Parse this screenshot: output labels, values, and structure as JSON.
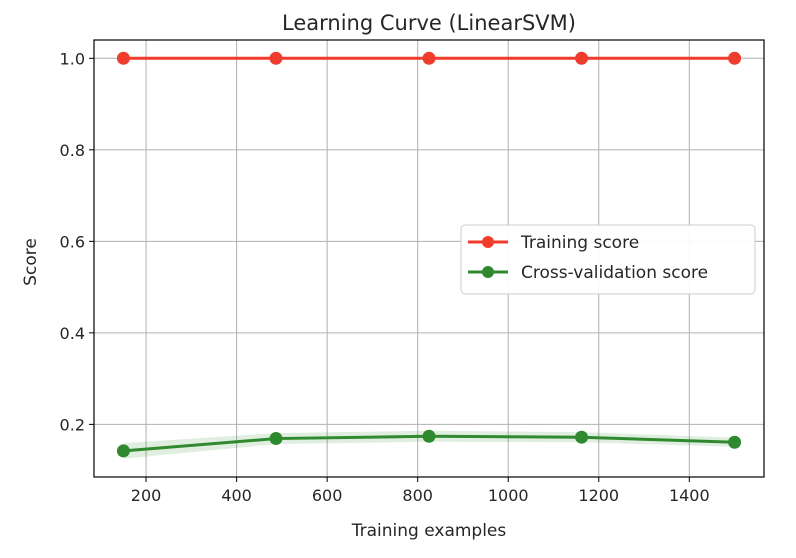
{
  "chart_data": {
    "type": "line",
    "title": "Learning Curve (LinearSVM)",
    "xlabel": "Training examples",
    "ylabel": "Score",
    "xlim": [
      85,
      1565
    ],
    "ylim": [
      0.085,
      1.04
    ],
    "grid": true,
    "legend_position": "center-right",
    "x_ticks": [
      200,
      400,
      600,
      800,
      1000,
      1200,
      1400
    ],
    "y_ticks": [
      0.2,
      0.4,
      0.6,
      0.8,
      1.0
    ],
    "x_tick_labels": [
      "200",
      "400",
      "600",
      "800",
      "1000",
      "1200",
      "1400"
    ],
    "y_tick_labels": [
      "0.2",
      "0.4",
      "0.6",
      "0.8",
      "1.0"
    ],
    "x": [
      150,
      487,
      825,
      1162,
      1500
    ],
    "series": [
      {
        "name": "Training score",
        "color": "#f03c2d",
        "values": [
          1.0,
          1.0,
          1.0,
          1.0,
          1.0
        ],
        "band": [
          [
            1.0,
            1.0
          ],
          [
            1.0,
            1.0
          ],
          [
            1.0,
            1.0
          ],
          [
            1.0,
            1.0
          ],
          [
            1.0,
            1.0
          ]
        ]
      },
      {
        "name": "Cross-validation score",
        "color": "#2f8a2f",
        "values": [
          0.142,
          0.169,
          0.174,
          0.172,
          0.161
        ],
        "band": [
          [
            0.125,
            0.159
          ],
          [
            0.157,
            0.181
          ],
          [
            0.162,
            0.186
          ],
          [
            0.161,
            0.183
          ],
          [
            0.151,
            0.171
          ]
        ]
      }
    ]
  }
}
